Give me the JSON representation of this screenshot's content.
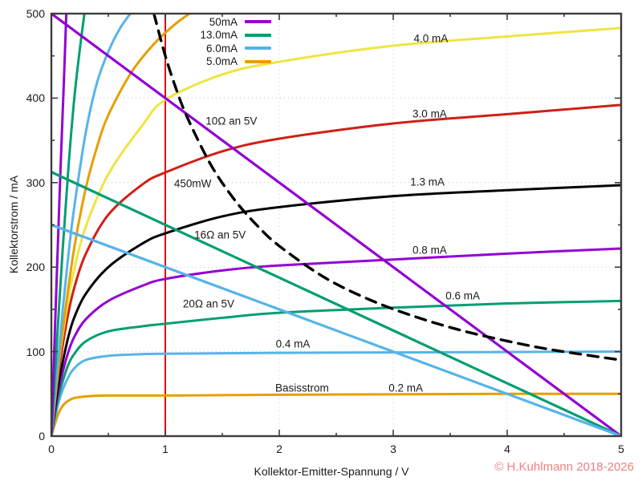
{
  "footer": {
    "copyright": "© H.Kuhlmann 2018-2026",
    "copyright_color": "#f08080"
  },
  "colors": {
    "purple": "#9400d3",
    "green": "#009e73",
    "skyblue": "#56b4e9",
    "orange": "#e69f00",
    "yellow": "#f0e442",
    "red": "#cf2017",
    "vline_red": "#e00000",
    "black": "#000000",
    "grid": "#c9c9c9",
    "border": "#3c3c3c",
    "text": "#1a1a1a"
  },
  "chart_data": {
    "type": "line",
    "title": "",
    "xlabel": "Kollektor-Emitter-Spannung / V",
    "ylabel": "Kollektorstrom / mA",
    "xlim": [
      0,
      5
    ],
    "ylim": [
      0,
      500
    ],
    "x_tick_labels": [
      "0",
      "1",
      "2",
      "3",
      "4",
      "5"
    ],
    "x_tick_values": [
      0,
      1,
      2,
      3,
      4,
      5
    ],
    "y_tick_labels": [
      "0",
      "100",
      "200",
      "300",
      "400",
      "500"
    ],
    "y_tick_values": [
      0,
      100,
      200,
      300,
      400,
      500
    ],
    "x_minor_step": 0.5,
    "y_minor_step": 50,
    "grid": true,
    "legend": {
      "position": "top-inside",
      "entries": [
        {
          "label": "50mA",
          "color": "purple"
        },
        {
          "label": "13.0mA",
          "color": "green"
        },
        {
          "label": "6.0mA",
          "color": "skyblue"
        },
        {
          "label": "5.0mA",
          "color": "orange"
        }
      ]
    },
    "marker_line": {
      "x": 1,
      "color": "vline_red",
      "width": 2
    },
    "series": [
      {
        "id": "ib-0.2ma",
        "name": "0.2 mA base current",
        "role": "output-characteristic",
        "color": "orange",
        "width": 3,
        "dash": null,
        "points": [
          [
            0,
            0
          ],
          [
            0.03,
            14
          ],
          [
            0.06,
            26
          ],
          [
            0.1,
            36
          ],
          [
            0.15,
            42
          ],
          [
            0.2,
            45
          ],
          [
            0.3,
            47
          ],
          [
            0.5,
            48
          ],
          [
            1,
            48
          ],
          [
            1.5,
            48.5
          ],
          [
            2,
            49
          ],
          [
            3,
            49.5
          ],
          [
            4,
            50
          ],
          [
            5,
            50
          ]
        ]
      },
      {
        "id": "ib-0.4ma",
        "name": "0.4 mA base current",
        "role": "output-characteristic",
        "color": "skyblue",
        "width": 3,
        "dash": null,
        "points": [
          [
            0,
            0
          ],
          [
            0.03,
            20
          ],
          [
            0.06,
            38
          ],
          [
            0.1,
            55
          ],
          [
            0.15,
            70
          ],
          [
            0.2,
            80
          ],
          [
            0.3,
            90
          ],
          [
            0.5,
            95
          ],
          [
            0.8,
            97
          ],
          [
            1,
            97.5
          ],
          [
            2,
            98.5
          ],
          [
            3,
            99
          ],
          [
            4,
            99.5
          ],
          [
            5,
            100
          ]
        ]
      },
      {
        "id": "ib-0.6ma",
        "name": "0.6 mA base current",
        "role": "output-characteristic",
        "color": "green",
        "width": 3,
        "dash": null,
        "points": [
          [
            0,
            0
          ],
          [
            0.03,
            24
          ],
          [
            0.06,
            45
          ],
          [
            0.1,
            65
          ],
          [
            0.15,
            85
          ],
          [
            0.2,
            97
          ],
          [
            0.3,
            112
          ],
          [
            0.5,
            124
          ],
          [
            0.8,
            130
          ],
          [
            1,
            133
          ],
          [
            1.5,
            140
          ],
          [
            2,
            146
          ],
          [
            3,
            152
          ],
          [
            4,
            157
          ],
          [
            5,
            160
          ]
        ]
      },
      {
        "id": "ib-0.8ma",
        "name": "0.8 mA base current",
        "role": "output-characteristic",
        "color": "purple",
        "width": 3,
        "dash": null,
        "points": [
          [
            0,
            0
          ],
          [
            0.03,
            28
          ],
          [
            0.06,
            52
          ],
          [
            0.1,
            76
          ],
          [
            0.15,
            100
          ],
          [
            0.2,
            117
          ],
          [
            0.3,
            138
          ],
          [
            0.5,
            160
          ],
          [
            0.8,
            178
          ],
          [
            1,
            186
          ],
          [
            1.5,
            196
          ],
          [
            2,
            202
          ],
          [
            3,
            209
          ],
          [
            4,
            216
          ],
          [
            5,
            222
          ]
        ]
      },
      {
        "id": "ib-1.3ma",
        "name": "1.3 mA base current",
        "role": "output-characteristic",
        "color": "black",
        "width": 3,
        "dash": null,
        "points": [
          [
            0,
            0
          ],
          [
            0.03,
            32
          ],
          [
            0.06,
            60
          ],
          [
            0.1,
            88
          ],
          [
            0.15,
            118
          ],
          [
            0.2,
            140
          ],
          [
            0.3,
            168
          ],
          [
            0.5,
            200
          ],
          [
            0.8,
            228
          ],
          [
            1,
            240
          ],
          [
            1.5,
            260
          ],
          [
            2,
            271
          ],
          [
            3,
            284
          ],
          [
            4,
            291
          ],
          [
            5,
            297
          ]
        ]
      },
      {
        "id": "ib-3.0ma",
        "name": "3.0 mA base current",
        "role": "output-characteristic",
        "color": "red",
        "width": 3,
        "dash": null,
        "points": [
          [
            0,
            0
          ],
          [
            0.03,
            38
          ],
          [
            0.06,
            72
          ],
          [
            0.1,
            108
          ],
          [
            0.15,
            146
          ],
          [
            0.2,
            175
          ],
          [
            0.3,
            215
          ],
          [
            0.5,
            262
          ],
          [
            0.8,
            298
          ],
          [
            1,
            312
          ],
          [
            1.5,
            337
          ],
          [
            2,
            352
          ],
          [
            3,
            370
          ],
          [
            4,
            381
          ],
          [
            5,
            392
          ]
        ]
      },
      {
        "id": "ib-4.0ma",
        "name": "4.0 mA base current",
        "role": "output-characteristic",
        "color": "yellow",
        "width": 3,
        "dash": null,
        "points": [
          [
            0,
            0
          ],
          [
            0.03,
            42
          ],
          [
            0.06,
            80
          ],
          [
            0.1,
            120
          ],
          [
            0.15,
            163
          ],
          [
            0.2,
            197
          ],
          [
            0.3,
            247
          ],
          [
            0.5,
            310
          ],
          [
            0.8,
            368
          ],
          [
            1,
            398
          ],
          [
            1.5,
            428
          ],
          [
            2,
            443
          ],
          [
            3,
            462
          ],
          [
            4,
            473
          ],
          [
            5,
            483
          ]
        ]
      },
      {
        "id": "ib-5.0ma",
        "name": "5.0 mA base current",
        "role": "key-curve",
        "color": "orange",
        "width": 3,
        "dash": null,
        "points": [
          [
            0,
            0
          ],
          [
            0.05,
            66
          ],
          [
            0.1,
            126
          ],
          [
            0.2,
            222
          ],
          [
            0.3,
            292
          ],
          [
            0.4,
            342
          ],
          [
            0.5,
            380
          ],
          [
            0.7,
            430
          ],
          [
            0.9,
            464
          ],
          [
            1.1,
            489
          ],
          [
            1.3,
            508
          ]
        ]
      },
      {
        "id": "ib-6.0ma",
        "name": "6.0 mA base current",
        "role": "key-curve",
        "color": "skyblue",
        "width": 3,
        "dash": null,
        "points": [
          [
            0,
            0
          ],
          [
            0.05,
            78
          ],
          [
            0.1,
            150
          ],
          [
            0.15,
            215
          ],
          [
            0.2,
            270
          ],
          [
            0.3,
            358
          ],
          [
            0.4,
            418
          ],
          [
            0.5,
            455
          ],
          [
            0.6,
            482
          ],
          [
            0.72,
            505
          ]
        ]
      },
      {
        "id": "ib-13.0ma",
        "name": "13.0 mA base current",
        "role": "key-curve",
        "color": "green",
        "width": 3,
        "dash": null,
        "points": [
          [
            0,
            0
          ],
          [
            0.05,
            115
          ],
          [
            0.1,
            222
          ],
          [
            0.15,
            318
          ],
          [
            0.2,
            398
          ],
          [
            0.25,
            458
          ],
          [
            0.3,
            510
          ]
        ]
      },
      {
        "id": "ib-50ma",
        "name": "50 mA base current",
        "role": "key-curve",
        "color": "purple",
        "width": 3,
        "dash": null,
        "points": [
          [
            0,
            0
          ],
          [
            0.04,
            160
          ],
          [
            0.08,
            315
          ],
          [
            0.11,
            420
          ],
          [
            0.135,
            515
          ]
        ]
      },
      {
        "id": "load-line-10ohm",
        "name": "10Ω an 5V load line",
        "role": "load-line",
        "color": "purple",
        "width": 3.2,
        "dash": null,
        "points": [
          [
            0,
            500
          ],
          [
            5,
            0
          ]
        ]
      },
      {
        "id": "load-line-16ohm",
        "name": "16Ω an 5V load line",
        "role": "load-line",
        "color": "green",
        "width": 3.2,
        "dash": null,
        "points": [
          [
            0,
            312.5
          ],
          [
            5,
            0
          ]
        ]
      },
      {
        "id": "load-line-20ohm",
        "name": "20Ω an 5V load line",
        "role": "load-line",
        "color": "skyblue",
        "width": 3.2,
        "dash": null,
        "points": [
          [
            0,
            250
          ],
          [
            5,
            0
          ]
        ]
      },
      {
        "id": "power-curve-450mw",
        "name": "450 mW power hyperbola",
        "role": "power-hyperbola",
        "color": "black",
        "width": 3.4,
        "dash": [
          13,
          9
        ],
        "points": [
          [
            0.9,
            500
          ],
          [
            1.0,
            450
          ],
          [
            1.1,
            409
          ],
          [
            1.2,
            375
          ],
          [
            1.4,
            321
          ],
          [
            1.6,
            281
          ],
          [
            1.8,
            250
          ],
          [
            2.0,
            225
          ],
          [
            2.4,
            187.5
          ],
          [
            2.8,
            161
          ],
          [
            3.2,
            141
          ],
          [
            3.6,
            125
          ],
          [
            4.0,
            112.5
          ],
          [
            4.4,
            102
          ],
          [
            5.0,
            90
          ]
        ]
      }
    ],
    "annotations": [
      {
        "id": "label-4.0ma",
        "text": "4.0 mA",
        "v": 3.33,
        "i": 471
      },
      {
        "id": "label-3.0ma",
        "text": "3.0 mA",
        "v": 3.32,
        "i": 381
      },
      {
        "id": "label-1.3ma",
        "text": "1.3 mA",
        "v": 3.3,
        "i": 301
      },
      {
        "id": "label-0.8ma",
        "text": "0.8 mA",
        "v": 3.32,
        "i": 220
      },
      {
        "id": "label-0.6ma",
        "text": "0.6 mA",
        "v": 3.61,
        "i": 166
      },
      {
        "id": "label-0.4ma",
        "text": "0.4 mA",
        "v": 2.12,
        "i": 109
      },
      {
        "id": "label-basisstrom",
        "text": "Basisstrom",
        "v": 2.2,
        "i": 57
      },
      {
        "id": "label-0.2ma",
        "text": "0.2 mA",
        "v": 3.11,
        "i": 57
      },
      {
        "id": "label-10ohm",
        "text": "10Ω an 5V",
        "v": 1.58,
        "i": 373
      },
      {
        "id": "label-450mw",
        "text": "450mW",
        "v": 1.24,
        "i": 299
      },
      {
        "id": "label-16ohm",
        "text": "16Ω an 5V",
        "v": 1.48,
        "i": 238
      },
      {
        "id": "label-20ohm",
        "text": "20Ω an 5V",
        "v": 1.38,
        "i": 157
      }
    ]
  }
}
